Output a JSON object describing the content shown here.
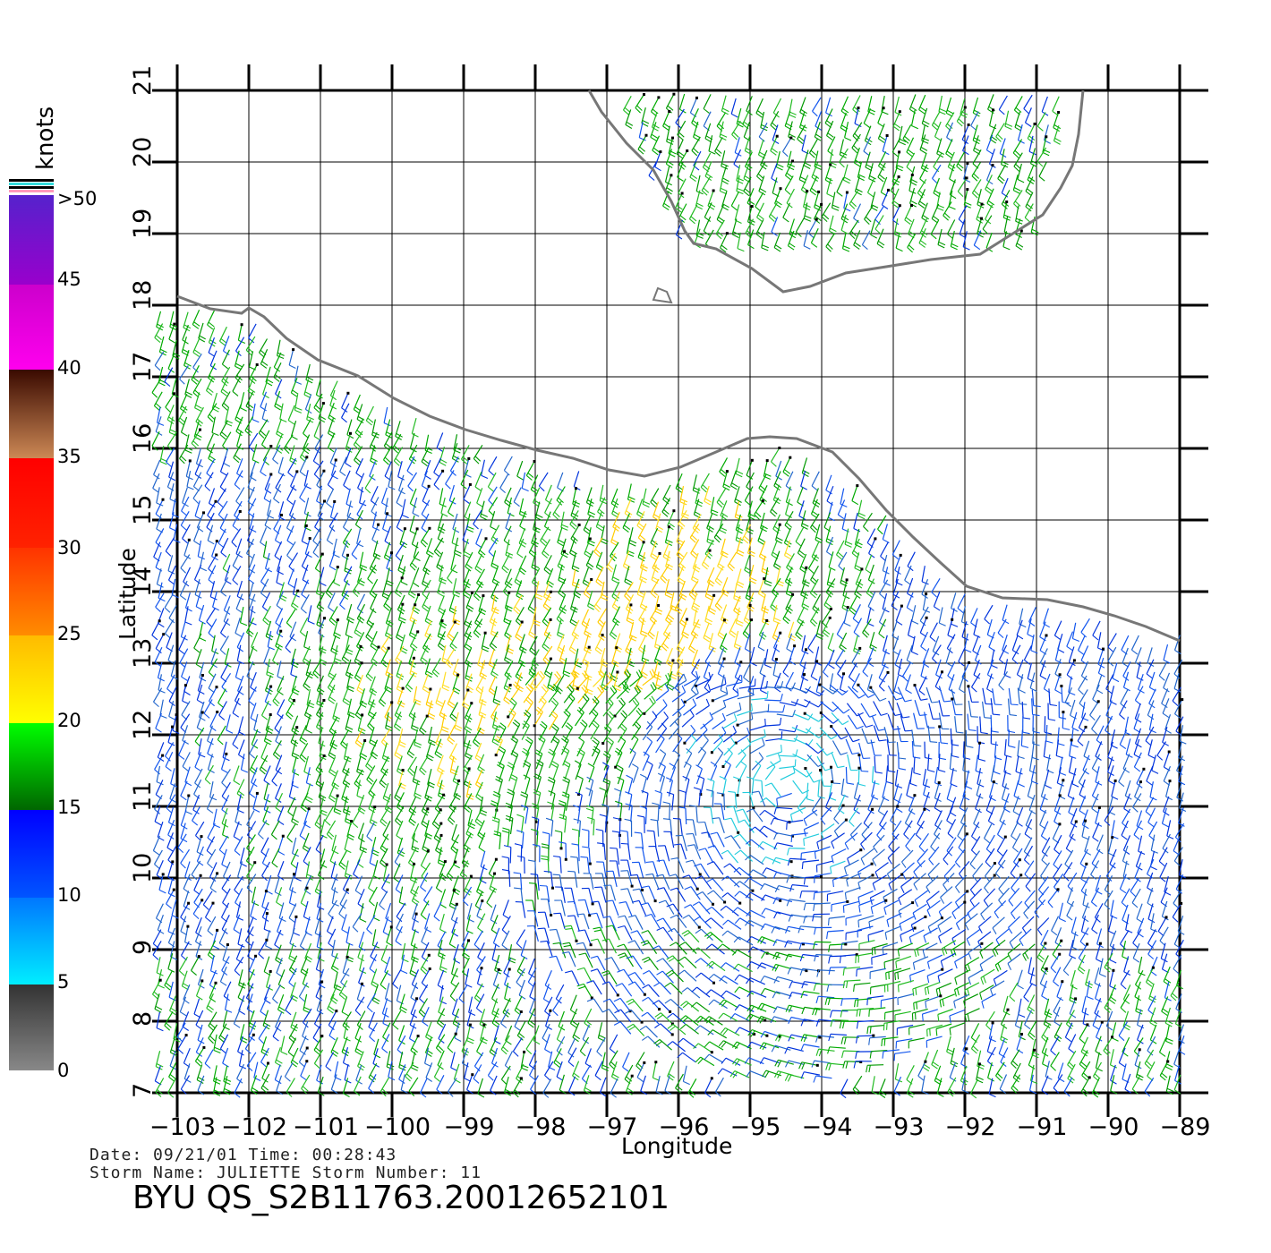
{
  "map": {
    "x_label": "Longitude",
    "y_label": "Latitude",
    "lon_ticks": [
      "−103",
      "−102",
      "−101",
      "−100",
      "−99",
      "−98",
      "−97",
      "−96",
      "−95",
      "−94",
      "−93",
      "−92",
      "−91",
      "−90",
      "−89"
    ],
    "lat_ticks": [
      "7",
      "8",
      "9",
      "10",
      "11",
      "12",
      "13",
      "14",
      "15",
      "16",
      "17",
      "18",
      "19",
      "20",
      "21"
    ],
    "lon_range": [
      -103,
      -89
    ],
    "lat_range": [
      7,
      21
    ],
    "grid": true,
    "coast_color": "#777777"
  },
  "colorbar": {
    "unit": "knots",
    "tick_labels": [
      "0",
      "5",
      "10",
      "15",
      "20",
      "25",
      "30",
      "35",
      "40",
      "45",
      ">50"
    ],
    "colors": [
      "#888888",
      "#00eeff",
      "#0000ff",
      "#00ff00",
      "#ffcc00",
      "#ff2a00",
      "#a0522d",
      "#ff00ff",
      "#6a1fd0"
    ]
  },
  "info": {
    "date_line": "Date: 09/21/01   Time: 00:28:43",
    "storm_line": "Storm  Name: JULIETTE   Storm  Number: 11",
    "file_id": "BYU  QS_S2B11763.20012652101"
  }
}
